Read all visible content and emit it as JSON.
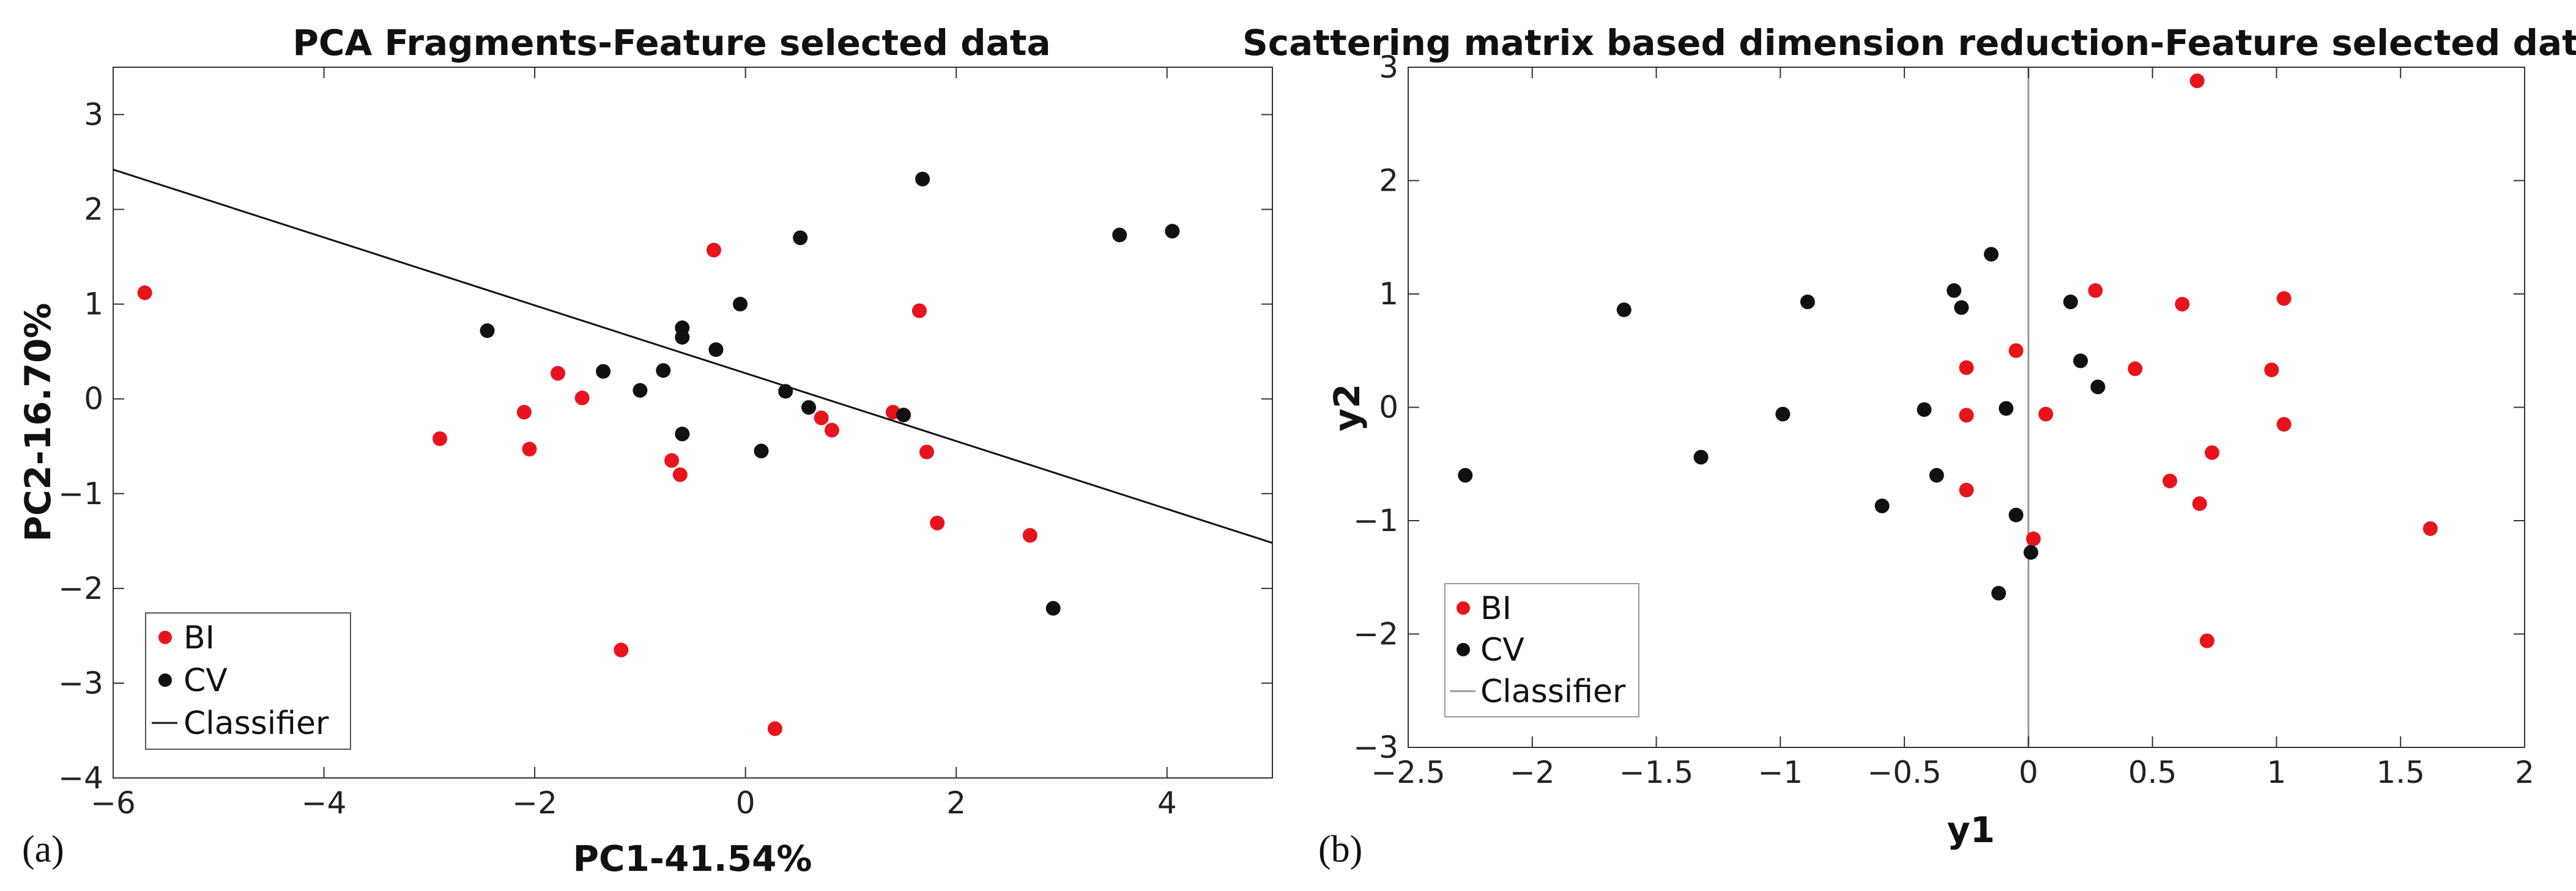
{
  "chart_data": [
    {
      "type": "scatter",
      "title": "PCA Fragments-Feature selected data",
      "xlabel": "PC1-41.54%",
      "ylabel": "PC2-16.70%",
      "xlim": [
        -6,
        5
      ],
      "ylim": [
        -4,
        3.5
      ],
      "xticks": [
        -6,
        -4,
        -2,
        0,
        2,
        4
      ],
      "yticks": [
        -4,
        -3,
        -2,
        -1,
        0,
        1,
        2,
        3
      ],
      "xtick_labels": [
        "−6",
        "−4",
        "−2",
        "0",
        "2",
        "4"
      ],
      "ytick_labels": [
        "−4",
        "−3",
        "−2",
        "−1",
        "0",
        "1",
        "2",
        "3"
      ],
      "panel_label": "(a)",
      "legend": {
        "position": "bottom-left",
        "entries": [
          "BI",
          "CV",
          "Classifier"
        ]
      },
      "series": [
        {
          "name": "BI",
          "color": "#e8141c",
          "points": [
            [
              -5.7,
              1.12
            ],
            [
              -2.9,
              -0.42
            ],
            [
              -2.1,
              -0.14
            ],
            [
              -2.05,
              -0.53
            ],
            [
              -1.78,
              0.27
            ],
            [
              -1.55,
              0.01
            ],
            [
              -1.18,
              -2.65
            ],
            [
              -0.7,
              -0.65
            ],
            [
              -0.62,
              -0.8
            ],
            [
              -0.3,
              1.57
            ],
            [
              0.28,
              -3.48
            ],
            [
              0.72,
              -0.2
            ],
            [
              0.82,
              -0.33
            ],
            [
              1.4,
              -0.14
            ],
            [
              1.65,
              0.93
            ],
            [
              1.72,
              -0.56
            ],
            [
              1.82,
              -1.31
            ],
            [
              2.7,
              -1.44
            ]
          ]
        },
        {
          "name": "CV",
          "color": "#111111",
          "points": [
            [
              -2.45,
              0.72
            ],
            [
              -1.35,
              0.29
            ],
            [
              -1.0,
              0.09
            ],
            [
              -0.78,
              0.3
            ],
            [
              -0.6,
              0.75
            ],
            [
              -0.6,
              0.65
            ],
            [
              -0.6,
              -0.37
            ],
            [
              -0.28,
              0.52
            ],
            [
              -0.05,
              1.0
            ],
            [
              0.15,
              -0.55
            ],
            [
              0.38,
              0.08
            ],
            [
              0.52,
              1.7
            ],
            [
              0.6,
              -0.09
            ],
            [
              1.5,
              -0.17
            ],
            [
              1.68,
              2.32
            ],
            [
              2.92,
              -2.21
            ],
            [
              3.55,
              1.73
            ],
            [
              4.05,
              1.77
            ]
          ]
        }
      ],
      "classifier": {
        "name": "Classifier",
        "type": "line",
        "points": [
          [
            -6,
            2.42
          ],
          [
            5,
            -1.52
          ]
        ],
        "color": "#111111"
      }
    },
    {
      "type": "scatter",
      "title": "Scattering matrix based dimension reduction-Feature selected data",
      "xlabel": "y1",
      "ylabel": "y2",
      "xlim": [
        -2.5,
        2
      ],
      "ylim": [
        -3,
        3
      ],
      "xticks": [
        -2.5,
        -2,
        -1.5,
        -1,
        -0.5,
        0,
        0.5,
        1,
        1.5,
        2
      ],
      "yticks": [
        -3,
        -2,
        -1,
        0,
        1,
        2,
        3
      ],
      "xtick_labels": [
        "−2.5",
        "−2",
        "−1.5",
        "−1",
        "−0.5",
        "0",
        "0.5",
        "1",
        "1.5",
        "2"
      ],
      "ytick_labels": [
        "−3",
        "−2",
        "−1",
        "0",
        "1",
        "2",
        "3"
      ],
      "panel_label": "(b)",
      "legend": {
        "position": "bottom-left",
        "entries": [
          "BI",
          "CV",
          "Classifier"
        ]
      },
      "series": [
        {
          "name": "BI",
          "color": "#e8141c",
          "points": [
            [
              -0.25,
              0.35
            ],
            [
              -0.25,
              -0.07
            ],
            [
              -0.25,
              -0.73
            ],
            [
              -0.05,
              0.5
            ],
            [
              0.02,
              -1.16
            ],
            [
              0.07,
              -0.06
            ],
            [
              0.27,
              1.03
            ],
            [
              0.43,
              0.34
            ],
            [
              0.57,
              -0.65
            ],
            [
              0.62,
              0.91
            ],
            [
              0.68,
              2.88
            ],
            [
              0.69,
              -0.85
            ],
            [
              0.72,
              -2.06
            ],
            [
              0.74,
              -0.4
            ],
            [
              0.98,
              0.33
            ],
            [
              1.03,
              0.96
            ],
            [
              1.03,
              -0.15
            ],
            [
              1.62,
              -1.07
            ]
          ]
        },
        {
          "name": "CV",
          "color": "#111111",
          "points": [
            [
              -2.27,
              -0.6
            ],
            [
              -1.63,
              0.86
            ],
            [
              -1.32,
              -0.44
            ],
            [
              -0.99,
              -0.06
            ],
            [
              -0.89,
              0.93
            ],
            [
              -0.59,
              -0.87
            ],
            [
              -0.42,
              -0.02
            ],
            [
              -0.37,
              -0.6
            ],
            [
              -0.3,
              1.03
            ],
            [
              -0.27,
              0.88
            ],
            [
              -0.15,
              1.35
            ],
            [
              -0.12,
              -1.64
            ],
            [
              -0.09,
              -0.01
            ],
            [
              -0.05,
              -0.95
            ],
            [
              0.01,
              -1.28
            ],
            [
              0.17,
              0.93
            ],
            [
              0.21,
              0.41
            ],
            [
              0.28,
              0.18
            ]
          ]
        }
      ],
      "classifier": {
        "name": "Classifier",
        "type": "vline",
        "x": 0,
        "color": "#9a9a9a"
      }
    }
  ]
}
